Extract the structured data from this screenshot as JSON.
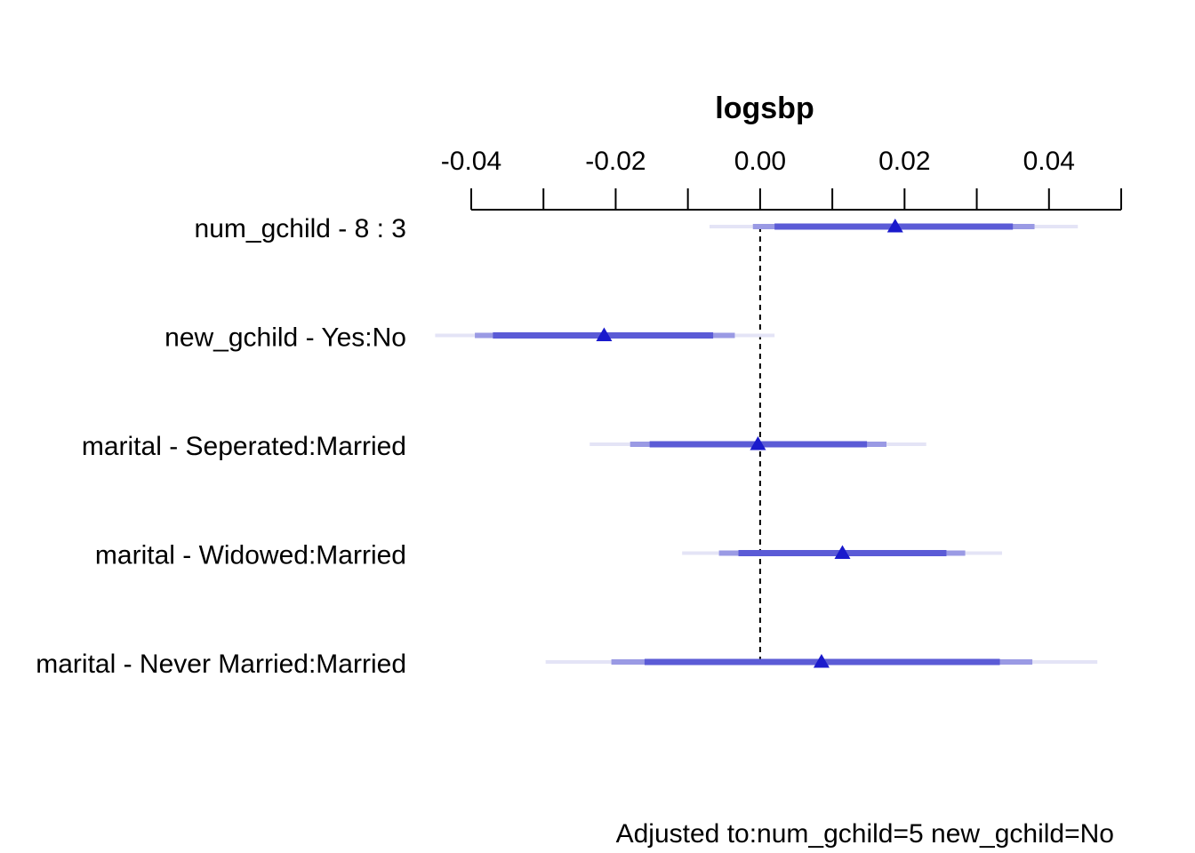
{
  "chart_data": {
    "type": "forest",
    "title": "logsbp",
    "x_ticks": [
      -0.04,
      -0.02,
      0.0,
      0.02,
      0.04
    ],
    "x_tick_labels": [
      "-0.04",
      "-0.02",
      "0.00",
      "0.02",
      "0.04"
    ],
    "minor_ticks": [
      -0.04,
      -0.03,
      -0.02,
      -0.01,
      0.0,
      0.01,
      0.02,
      0.03,
      0.04,
      0.05
    ],
    "xlim": [
      -0.04,
      0.05
    ],
    "reference_line": 0,
    "rows": [
      {
        "label": "num_gchild - 8 : 3",
        "estimate": 0.0187,
        "ci90": [
          0.002,
          0.035
        ],
        "ci95": [
          -0.001,
          0.038
        ],
        "ci99": [
          -0.007,
          0.044
        ]
      },
      {
        "label": "new_gchild - Yes:No",
        "estimate": -0.0216,
        "ci90": [
          -0.037,
          -0.0065
        ],
        "ci95": [
          -0.0395,
          -0.0035
        ],
        "ci99": [
          -0.045,
          0.002
        ]
      },
      {
        "label": "marital - Seperated:Married",
        "estimate": -0.0003,
        "ci90": [
          -0.0153,
          0.0148
        ],
        "ci95": [
          -0.018,
          0.0175
        ],
        "ci99": [
          -0.0236,
          0.023
        ]
      },
      {
        "label": "marital - Widowed:Married",
        "estimate": 0.0114,
        "ci90": [
          -0.003,
          0.0258
        ],
        "ci95": [
          -0.0057,
          0.0284
        ],
        "ci99": [
          -0.0108,
          0.0335
        ]
      },
      {
        "label": "marital - Never Married:Married",
        "estimate": 0.0085,
        "ci90": [
          -0.016,
          0.0332
        ],
        "ci95": [
          -0.0206,
          0.0377
        ],
        "ci99": [
          -0.0297,
          0.0467
        ]
      }
    ],
    "colors": {
      "ci90": "#5b5bd6",
      "ci95": "#9a9ae4",
      "ci99": "#e4e4f6",
      "estimate": "#1a1acc"
    },
    "footnote": "Adjusted to:num_gchild=5 new_gchild=No"
  }
}
